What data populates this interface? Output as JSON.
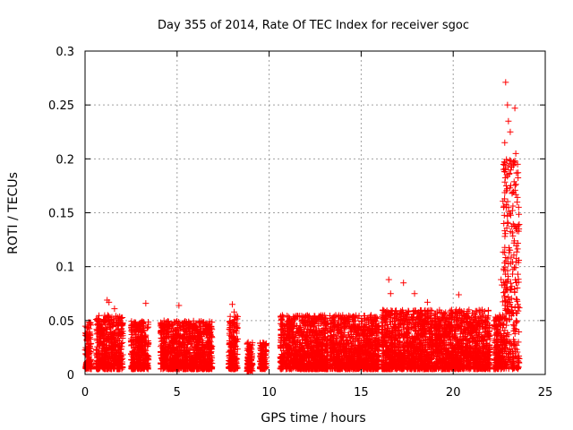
{
  "chart_data": {
    "type": "scatter",
    "title": "Day 355 of 2014, Rate Of TEC Index for receiver sgoc",
    "xlabel": "GPS time / hours",
    "ylabel": "ROTI / TECUs",
    "xlim": [
      0,
      25
    ],
    "ylim": [
      0,
      0.3
    ],
    "xticks": [
      0,
      5,
      10,
      15,
      20,
      25
    ],
    "xtick_labels": [
      "0",
      "5",
      "10",
      "15",
      "20",
      "25"
    ],
    "yticks": [
      0,
      0.05,
      0.1,
      0.15,
      0.2,
      0.25,
      0.3
    ],
    "ytick_labels": [
      "0",
      "0.05",
      "0.1",
      "0.15",
      "0.2",
      "0.25",
      "0.3"
    ],
    "grid": true,
    "marker": "+",
    "color": "#ff0000",
    "series": [
      {
        "name": "ROTI",
        "segments": [
          {
            "x": [
              0.0,
              0.35
            ],
            "low": 0.005,
            "high": 0.05
          },
          {
            "x": [
              0.6,
              2.05
            ],
            "low": 0.005,
            "high": 0.055
          },
          {
            "x": [
              2.5,
              3.45
            ],
            "low": 0.005,
            "high": 0.05
          },
          {
            "x": [
              4.1,
              6.9
            ],
            "low": 0.005,
            "high": 0.05
          },
          {
            "x": [
              7.8,
              8.3
            ],
            "low": 0.005,
            "high": 0.055
          },
          {
            "x": [
              8.8,
              9.1
            ],
            "low": 0.003,
            "high": 0.03
          },
          {
            "x": [
              9.5,
              9.85
            ],
            "low": 0.005,
            "high": 0.03
          },
          {
            "x": [
              10.6,
              13.2
            ],
            "low": 0.005,
            "high": 0.055
          },
          {
            "x": [
              13.3,
              16.0
            ],
            "low": 0.005,
            "high": 0.055
          },
          {
            "x": [
              16.1,
              19.8
            ],
            "low": 0.005,
            "high": 0.06
          },
          {
            "x": [
              19.8,
              22.0
            ],
            "low": 0.005,
            "high": 0.06
          },
          {
            "x": [
              22.2,
              22.7
            ],
            "low": 0.005,
            "high": 0.055
          },
          {
            "x": [
              22.7,
              23.6
            ],
            "low": 0.005,
            "high": 0.2
          }
        ],
        "outliers": [
          {
            "x": 1.2,
            "y": 0.069
          },
          {
            "x": 1.3,
            "y": 0.067
          },
          {
            "x": 1.6,
            "y": 0.061
          },
          {
            "x": 3.3,
            "y": 0.066
          },
          {
            "x": 5.1,
            "y": 0.064
          },
          {
            "x": 8.0,
            "y": 0.065
          },
          {
            "x": 8.1,
            "y": 0.058
          },
          {
            "x": 16.5,
            "y": 0.088
          },
          {
            "x": 16.6,
            "y": 0.075
          },
          {
            "x": 17.3,
            "y": 0.085
          },
          {
            "x": 17.9,
            "y": 0.075
          },
          {
            "x": 18.6,
            "y": 0.067
          },
          {
            "x": 20.3,
            "y": 0.074
          },
          {
            "x": 22.6,
            "y": 0.088
          },
          {
            "x": 22.65,
            "y": 0.083
          },
          {
            "x": 22.85,
            "y": 0.271
          },
          {
            "x": 22.95,
            "y": 0.25
          },
          {
            "x": 23.0,
            "y": 0.235
          },
          {
            "x": 23.35,
            "y": 0.247
          },
          {
            "x": 22.8,
            "y": 0.215
          },
          {
            "x": 23.1,
            "y": 0.225
          },
          {
            "x": 23.4,
            "y": 0.205
          },
          {
            "x": 23.5,
            "y": 0.195
          },
          {
            "x": 22.75,
            "y": 0.14
          }
        ]
      }
    ]
  }
}
